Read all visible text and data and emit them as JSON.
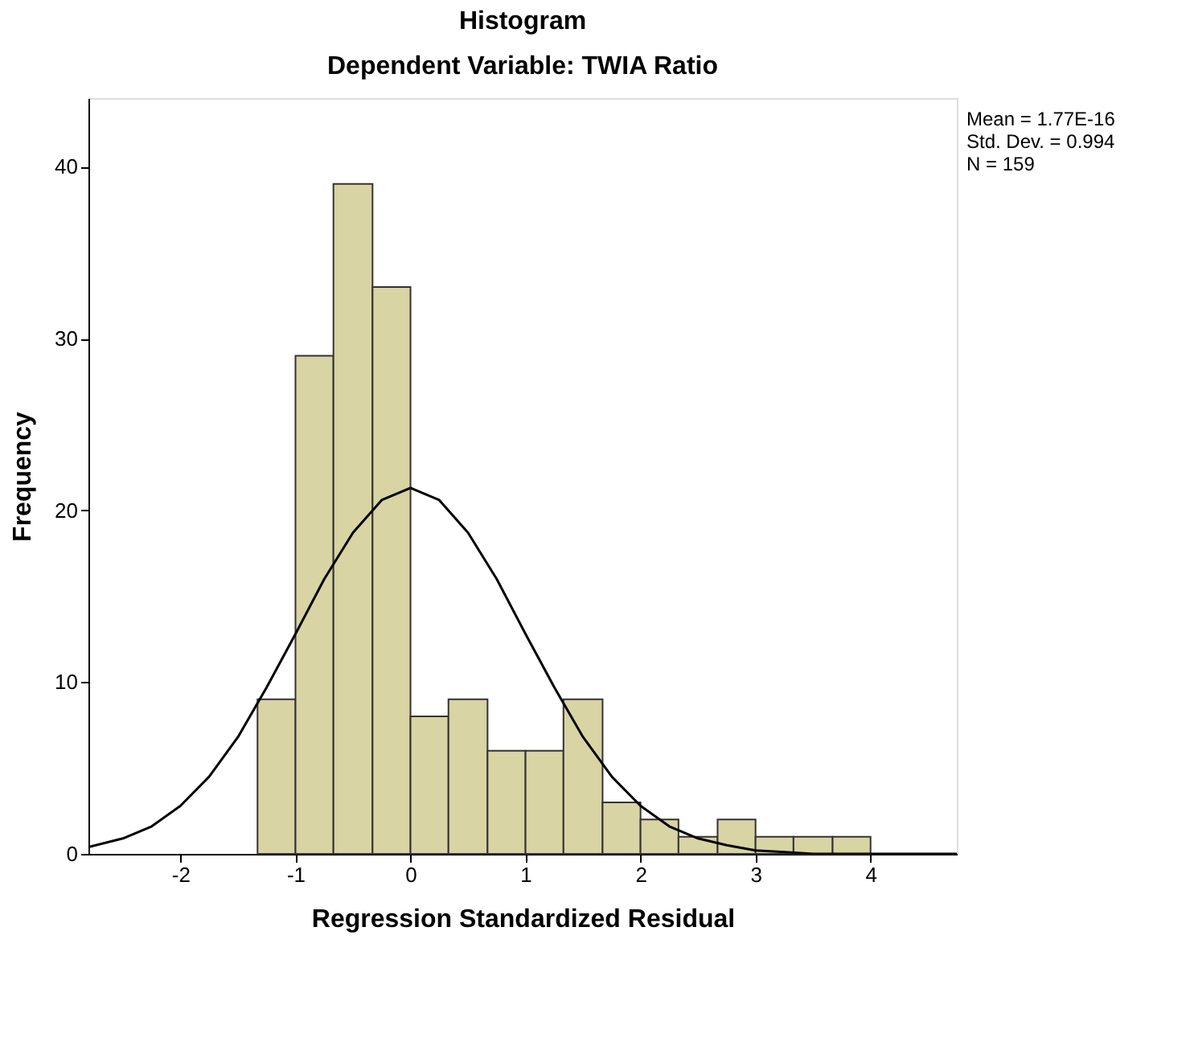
{
  "chart_data": {
    "type": "histogram",
    "title": "Histogram",
    "subtitle": "Dependent Variable: TWIA Ratio",
    "xlabel": "Regression Standardized Residual",
    "ylabel": "Frequency",
    "bins": [
      -1.33,
      -1,
      -0.67,
      -0.33,
      0,
      0.33,
      0.67,
      1,
      1.33,
      1.67,
      2,
      2.33,
      2.67,
      3,
      3.33,
      3.67,
      4
    ],
    "values": [
      9,
      29,
      39,
      33,
      8,
      9,
      6,
      6,
      9,
      3,
      2,
      1,
      2,
      1,
      1,
      1
    ],
    "color": "#d8d4a4",
    "series": [
      {
        "type": "line",
        "color": "#000000",
        "x": [
          -2.8,
          -2.5,
          -2.25,
          -2,
          -1.75,
          -1.5,
          -1.25,
          -1,
          -0.75,
          -0.5,
          -0.25,
          0,
          0.25,
          0.5,
          0.75,
          1,
          1.25,
          1.5,
          1.75,
          2,
          2.25,
          2.5,
          2.75,
          3,
          3.25,
          3.5,
          4,
          4.75
        ],
        "values": [
          0.4,
          0.9,
          1.6,
          2.8,
          4.5,
          6.8,
          9.7,
          12.8,
          16.0,
          18.7,
          20.6,
          21.3,
          20.6,
          18.7,
          16.0,
          12.8,
          9.7,
          6.8,
          4.5,
          2.8,
          1.6,
          0.9,
          0.5,
          0.2,
          0.1,
          0,
          0,
          0
        ]
      }
    ],
    "xlim": [
      -2.8,
      4.75
    ],
    "xticks": [
      -2,
      -1,
      0,
      1,
      2,
      3,
      4
    ],
    "ylim": [
      0,
      44
    ],
    "yticks": [
      0,
      10,
      20,
      30,
      40
    ],
    "grid": false,
    "annotations": [
      "Mean = 1.77E-16",
      "Std. Dev. = 0.994",
      "N = 159"
    ]
  }
}
